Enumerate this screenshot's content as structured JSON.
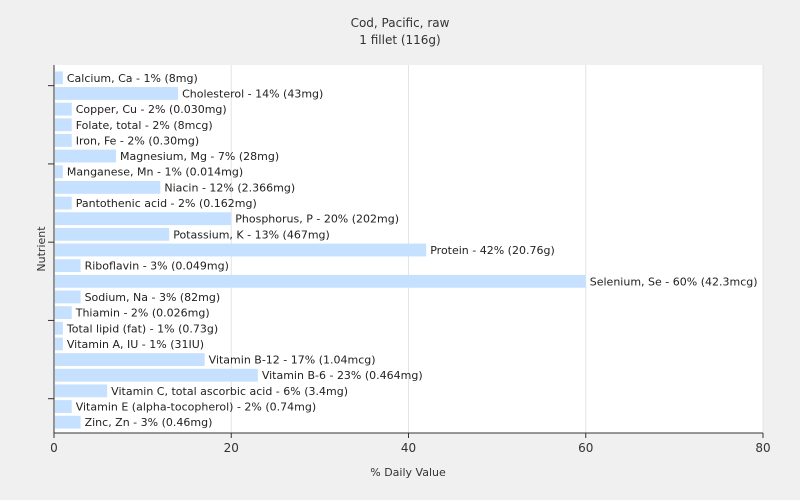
{
  "chart_data": {
    "type": "bar",
    "orientation": "horizontal",
    "title": "Cod, Pacific, raw",
    "subtitle": "1 fillet (116g)",
    "xlabel": "% Daily Value",
    "ylabel": "Nutrient",
    "xlim": [
      0,
      80
    ],
    "xticks": [
      0,
      20,
      40,
      60,
      80
    ],
    "grid": true,
    "bar_color": "#c6e0ff",
    "categories": [
      "Calcium, Ca",
      "Cholesterol",
      "Copper, Cu",
      "Folate, total",
      "Iron, Fe",
      "Magnesium, Mg",
      "Manganese, Mn",
      "Niacin",
      "Pantothenic acid",
      "Phosphorus, P",
      "Potassium, K",
      "Protein",
      "Riboflavin",
      "Selenium, Se",
      "Sodium, Na",
      "Thiamin",
      "Total lipid (fat)",
      "Vitamin A, IU",
      "Vitamin B-12",
      "Vitamin B-6",
      "Vitamin C, total ascorbic acid",
      "Vitamin E (alpha-tocopherol)",
      "Zinc, Zn"
    ],
    "values": [
      1,
      14,
      2,
      2,
      2,
      7,
      1,
      12,
      2,
      20,
      13,
      42,
      3,
      60,
      3,
      2,
      1,
      1,
      17,
      23,
      6,
      2,
      3
    ],
    "labels": [
      "Calcium, Ca - 1% (8mg)",
      "Cholesterol - 14% (43mg)",
      "Copper, Cu - 2% (0.030mg)",
      "Folate, total - 2% (8mcg)",
      "Iron, Fe - 2% (0.30mg)",
      "Magnesium, Mg - 7% (28mg)",
      "Manganese, Mn - 1% (0.014mg)",
      "Niacin - 12% (2.366mg)",
      "Pantothenic acid - 2% (0.162mg)",
      "Phosphorus, P - 20% (202mg)",
      "Potassium, K - 13% (467mg)",
      "Protein - 42% (20.76g)",
      "Riboflavin - 3% (0.049mg)",
      "Selenium, Se - 60% (42.3mcg)",
      "Sodium, Na - 3% (82mg)",
      "Thiamin - 2% (0.026mg)",
      "Total lipid (fat) - 1% (0.73g)",
      "Vitamin A, IU - 1% (31IU)",
      "Vitamin B-12 - 17% (1.04mcg)",
      "Vitamin B-6 - 23% (0.464mg)",
      "Vitamin C, total ascorbic acid - 6% (3.4mg)",
      "Vitamin E (alpha-tocopherol) - 2% (0.74mg)",
      "Zinc, Zn - 3% (0.46mg)"
    ]
  }
}
